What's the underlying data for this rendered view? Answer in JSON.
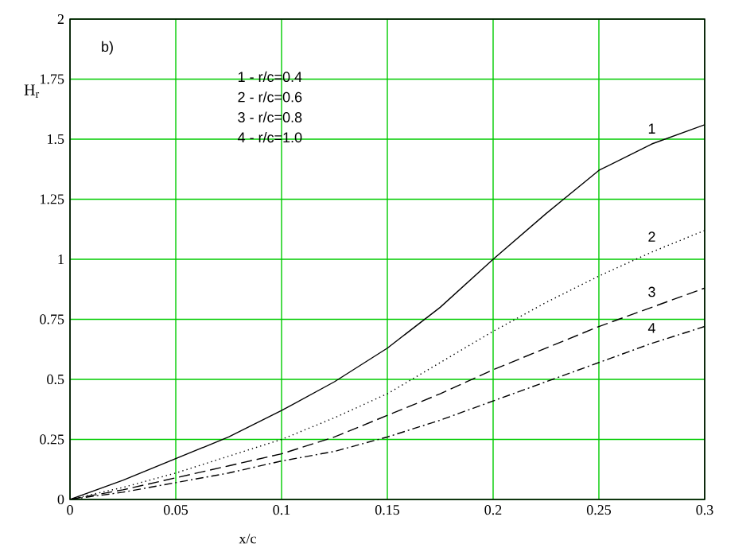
{
  "chart_data": {
    "type": "line",
    "xlabel": "x/c",
    "ylabel": "H$_{r}$",
    "x": [
      0,
      0.025,
      0.05,
      0.075,
      0.1,
      0.125,
      0.15,
      0.175,
      0.2,
      0.225,
      0.25,
      0.275,
      0.3
    ],
    "series": [
      {
        "name": "1",
        "color": "#000000",
        "line_style": "solid",
        "values": [
          0,
          0.08,
          0.17,
          0.26,
          0.37,
          0.49,
          0.63,
          0.8,
          1.0,
          1.19,
          1.37,
          1.48,
          1.56
        ]
      },
      {
        "name": "2",
        "color": "#000000",
        "line_style": "dotted",
        "values": [
          0,
          0.05,
          0.11,
          0.18,
          0.25,
          0.34,
          0.44,
          0.57,
          0.7,
          0.82,
          0.93,
          1.03,
          1.12
        ]
      },
      {
        "name": "3",
        "color": "#000000",
        "line_style": "dashed",
        "values": [
          0,
          0.04,
          0.09,
          0.14,
          0.19,
          0.26,
          0.35,
          0.44,
          0.54,
          0.63,
          0.72,
          0.8,
          0.88
        ]
      },
      {
        "name": "4",
        "color": "#000000",
        "line_style": "dashdot",
        "values": [
          0,
          0.03,
          0.07,
          0.11,
          0.16,
          0.2,
          0.26,
          0.33,
          0.41,
          0.49,
          0.57,
          0.65,
          0.72
        ]
      }
    ],
    "annotations": [
      "b)",
      "1 - r/c=0.4",
      "2 - r/c=0.6",
      "3 - r/c=0.8",
      "4 - r/c=1.0"
    ],
    "xlim": [
      0,
      0.3
    ],
    "xticks": [
      0,
      0.05,
      0.1,
      0.15,
      0.2,
      0.25,
      0.3
    ],
    "ylim": [
      0,
      2
    ],
    "yticks": [
      0,
      0.25,
      0.5,
      0.75,
      1,
      1.25,
      1.5,
      1.75,
      2
    ],
    "grid": true,
    "legend": false,
    "marker": "none"
  }
}
